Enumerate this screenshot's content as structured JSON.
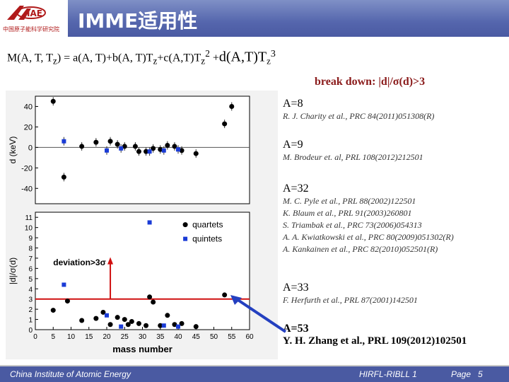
{
  "header": {
    "title": "IMME适用性",
    "logo_text": "中国原子能科学研究院"
  },
  "formula": {
    "main": "M(A, T, T",
    "sub1": "z",
    "mid": ") = a(A, T)+b(A, T)T",
    "sub2": "z",
    "mid2": "+c(A,T)T",
    "sub3": "z",
    "sup3": "2",
    "plus": " +",
    "dpart": "d(A,T)T",
    "sub4": "z",
    "sup4": "3"
  },
  "breakdown": "break down: |d|/σ(d)>3",
  "references": [
    {
      "head": "A=8",
      "lines": [
        "R. J. Charity et al., PRC 84(2011)051308(R)"
      ]
    },
    {
      "head": "A=9",
      "lines": [
        "M. Brodeur et. al, PRL 108(2012)212501"
      ]
    },
    {
      "head": "A=32",
      "lines": [
        "M. C. Pyle et al., PRL 88(2002)122501",
        "K. Blaum et al., PRL 91(2003)260801",
        "S. Triambak et al., PRC 73(2006)054313",
        "A. A. Kwiatkowski et al., PRC 80(2009)051302(R)",
        "A. Kankainen et al., PRC 82(2010)052501(R)"
      ]
    },
    {
      "head": "A=33",
      "lines": [
        "F. Herfurth et al., PRL 87(2001)142501"
      ]
    },
    {
      "head": "A=53",
      "lines": [
        "Y. H. Zhang et al., PRL 109(2012)102501"
      ]
    }
  ],
  "footer": {
    "left": "China Institute of Atomic Energy",
    "middle": "HIRFL-RIBLL 1",
    "page_label": "Page",
    "page_number": "5"
  },
  "chart_data": [
    {
      "type": "scatter",
      "title": "",
      "xlabel": "",
      "ylabel": "d (keV)",
      "ylim": [
        -55,
        50
      ],
      "xlim": [
        0,
        60
      ],
      "yticks": [
        40,
        20,
        0,
        -20,
        -40
      ],
      "series": [
        {
          "name": "quartets",
          "color": "#000000",
          "points": [
            [
              5,
              45
            ],
            [
              8,
              -29
            ],
            [
              13,
              1
            ],
            [
              17,
              5
            ],
            [
              21,
              6
            ],
            [
              23,
              3
            ],
            [
              25,
              1
            ],
            [
              28,
              1
            ],
            [
              29,
              -4
            ],
            [
              31,
              -4
            ],
            [
              33,
              -1
            ],
            [
              35,
              -2
            ],
            [
              37,
              2
            ],
            [
              39,
              1
            ],
            [
              41,
              -3
            ],
            [
              45,
              -6
            ],
            [
              53,
              23
            ],
            [
              55,
              40
            ]
          ]
        },
        {
          "name": "quintets",
          "color": "#1a3bd6",
          "points": [
            [
              8,
              6
            ],
            [
              20,
              -3
            ],
            [
              24,
              -1
            ],
            [
              32,
              -4
            ],
            [
              36,
              -3
            ],
            [
              40,
              -2
            ]
          ]
        }
      ]
    },
    {
      "type": "scatter",
      "title": "",
      "xlabel": "mass number",
      "ylabel": "|d|/σ(d)",
      "ylim": [
        0,
        11.5
      ],
      "xlim": [
        0,
        60
      ],
      "yticks": [
        0,
        1,
        2,
        3,
        4,
        5,
        6,
        7,
        8,
        9,
        10,
        11
      ],
      "xticks": [
        0,
        5,
        10,
        15,
        20,
        25,
        30,
        35,
        40,
        45,
        50,
        55,
        60
      ],
      "threshold": 3,
      "annotation": "deviation>3σ",
      "legend": [
        "quartets",
        "quintets"
      ],
      "series": [
        {
          "name": "quartets",
          "color": "#000000",
          "points": [
            [
              5,
              1.9
            ],
            [
              9,
              2.8
            ],
            [
              13,
              0.9
            ],
            [
              17,
              1.1
            ],
            [
              19,
              1.7
            ],
            [
              21,
              0.5
            ],
            [
              23,
              1.2
            ],
            [
              25,
              1.0
            ],
            [
              26,
              0.5
            ],
            [
              27,
              0.8
            ],
            [
              29,
              0.6
            ],
            [
              31,
              0.4
            ],
            [
              32,
              3.2
            ],
            [
              33,
              2.7
            ],
            [
              35,
              0.4
            ],
            [
              37,
              1.4
            ],
            [
              39,
              0.5
            ],
            [
              41,
              0.6
            ],
            [
              45,
              0.3
            ],
            [
              53,
              3.4
            ]
          ]
        },
        {
          "name": "quintets",
          "color": "#1a3bd6",
          "points": [
            [
              8,
              4.4
            ],
            [
              20,
              1.4
            ],
            [
              24,
              0.3
            ],
            [
              32,
              10.5
            ],
            [
              36,
              0.4
            ],
            [
              40,
              0.3
            ]
          ]
        }
      ]
    }
  ]
}
